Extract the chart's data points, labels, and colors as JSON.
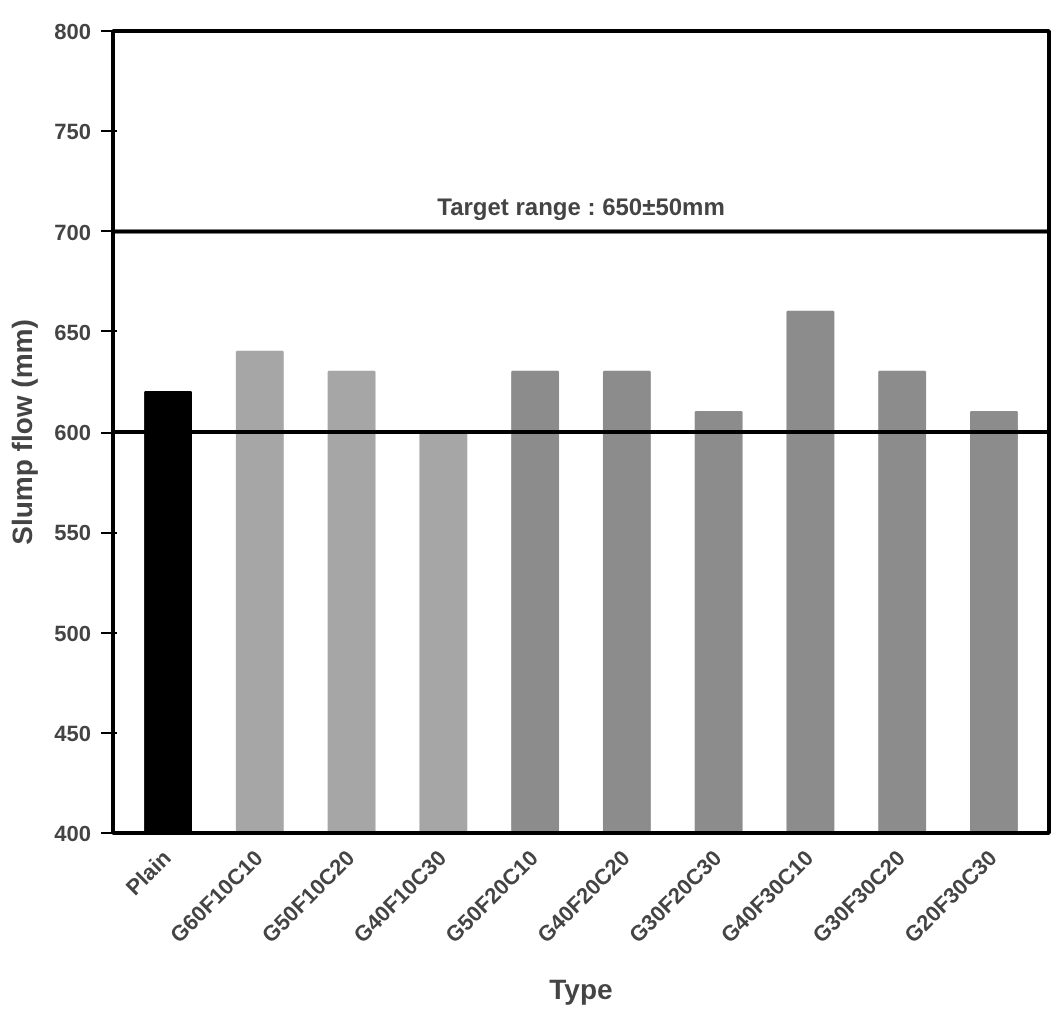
{
  "chart_data": {
    "type": "bar",
    "xlabel": "Type",
    "ylabel": "Slump flow (mm)",
    "categories": [
      "Plain",
      "G60F10C10",
      "G50F10C20",
      "G40F10C30",
      "G50F20C10",
      "G40F20C20",
      "G30F20C30",
      "G40F30C10",
      "G30F30C20",
      "G20F30C30"
    ],
    "values": [
      620,
      640,
      630,
      600,
      630,
      630,
      610,
      660,
      630,
      610
    ],
    "colors": [
      "#000000",
      "#a6a6a6",
      "#a6a6a6",
      "#a6a6a6",
      "#8c8c8c",
      "#8c8c8c",
      "#8c8c8c",
      "#8c8c8c",
      "#8c8c8c",
      "#8c8c8c"
    ],
    "ylim": [
      400,
      800
    ],
    "yticks": [
      400,
      450,
      500,
      550,
      600,
      650,
      700,
      750,
      800
    ],
    "ref_lines": [
      {
        "axis": "y",
        "value": 600,
        "label": null
      },
      {
        "axis": "y",
        "value": 700,
        "label": null
      }
    ],
    "annotations": [
      "Target range : 650±50mm"
    ],
    "grid": false
  }
}
